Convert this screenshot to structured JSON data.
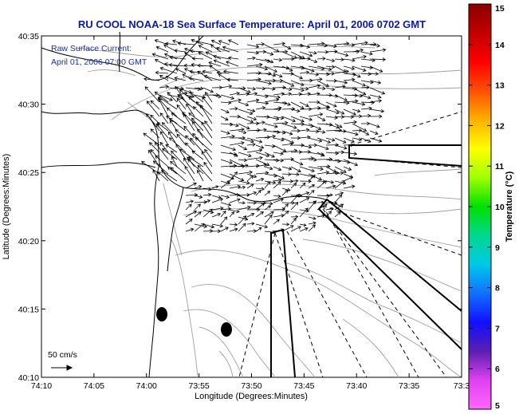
{
  "title": "RU COOL  NOAA-18  Sea Surface Temperature:  April 01, 2006 0702 GMT",
  "annotation": {
    "line1": "Raw Surface Current:",
    "line2": "April 01, 2006 07:00 GMT"
  },
  "x_axis": {
    "label": "Longitude (Degrees:Minutes)",
    "ticks": [
      "74:10",
      "74:05",
      "74:00",
      "73:55",
      "73:50",
      "73:45",
      "73:40",
      "73:35",
      "73:3"
    ]
  },
  "y_axis": {
    "label": "Latitude (Degrees:Minutes)",
    "ticks": [
      "40:10",
      "40:15",
      "40:20",
      "40:25",
      "40:30",
      "40:35"
    ]
  },
  "scale_label": "50 cm/s",
  "colorbar": {
    "label": "Temperature (°C)",
    "ticks": [
      "5",
      "6",
      "7",
      "8",
      "9",
      "10",
      "11",
      "12",
      "13",
      "14",
      "15"
    ],
    "colors": [
      "#ff66ff",
      "#e040f0",
      "#5a1fb0",
      "#1010ff",
      "#1070ff",
      "#00c8e8",
      "#00d890",
      "#00e000",
      "#a0ff00",
      "#ffff00",
      "#ffb000",
      "#ff5000",
      "#ff0000",
      "#c00000",
      "#8b0000"
    ]
  },
  "colors": {
    "title": "#0a1aa8",
    "annotation": "#1a2fa0",
    "coastline": "#000000",
    "bathymetry": "#a0a0a0",
    "vectors": "#000000"
  },
  "icons": [
    "station-marker-icon",
    "scale-arrow-icon"
  ]
}
